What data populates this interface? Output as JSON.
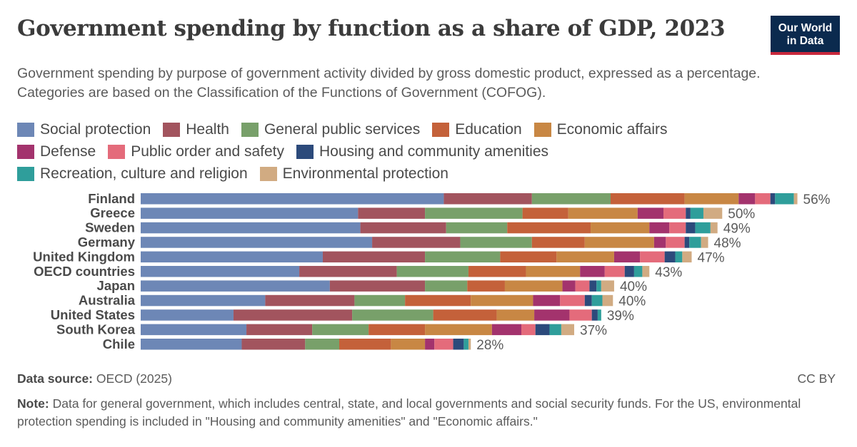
{
  "header": {
    "title": "Government spending by function as a share of GDP, 2023",
    "subtitle": "Government spending by purpose of government activity divided by gross domestic product, expressed as a percentage. Categories are based on the Classification of the Functions of Government (COFOG).",
    "logo_line1": "Our World",
    "logo_line2": "in Data"
  },
  "footer": {
    "source_label": "Data source:",
    "source_value": "OECD (2025)",
    "license": "CC BY",
    "note_label": "Note:",
    "note_text": "Data for general government, which includes central, state, and local governments and social security funds. For the US, environmental protection spending is included in \"Housing and community amenities\" and \"Economic affairs.\""
  },
  "chart_data": {
    "type": "bar",
    "orientation": "horizontal",
    "stacked": true,
    "categories": [
      "Finland",
      "Greece",
      "Sweden",
      "Germany",
      "United Kingdom",
      "OECD countries",
      "Japan",
      "Australia",
      "United States",
      "South Korea",
      "Chile"
    ],
    "total_labels": [
      "56%",
      "50%",
      "49%",
      "48%",
      "47%",
      "43%",
      "40%",
      "40%",
      "39%",
      "37%",
      "28%"
    ],
    "series": [
      {
        "name": "Social protection",
        "color": "#6d87b6",
        "values": [
          25.8,
          18.5,
          18.7,
          19.7,
          15.5,
          13.5,
          16.1,
          10.6,
          7.9,
          9.0,
          8.6
        ]
      },
      {
        "name": "Health",
        "color": "#a2545e",
        "values": [
          7.5,
          5.7,
          7.3,
          7.5,
          8.7,
          8.3,
          8.1,
          7.6,
          10.1,
          5.6,
          5.4
        ]
      },
      {
        "name": "General public services",
        "color": "#78a06a",
        "values": [
          6.7,
          8.3,
          5.2,
          6.1,
          6.4,
          6.1,
          3.6,
          4.3,
          6.9,
          4.8,
          2.9
        ]
      },
      {
        "name": "Education",
        "color": "#c4613a",
        "values": [
          6.3,
          3.9,
          7.1,
          4.5,
          4.8,
          4.9,
          3.2,
          5.6,
          5.4,
          4.8,
          4.4
        ]
      },
      {
        "name": "Economic affairs",
        "color": "#c88744",
        "values": [
          4.6,
          5.9,
          5.0,
          5.9,
          4.9,
          4.6,
          4.9,
          5.3,
          3.2,
          5.7,
          2.9
        ]
      },
      {
        "name": "Defense",
        "color": "#a3336d",
        "values": [
          1.4,
          2.2,
          1.7,
          1.0,
          2.2,
          2.1,
          1.1,
          2.3,
          3.0,
          2.5,
          0.8
        ]
      },
      {
        "name": "Public order and safety",
        "color": "#e46b7b",
        "values": [
          1.3,
          1.9,
          1.4,
          1.6,
          2.1,
          1.7,
          1.2,
          2.1,
          1.9,
          1.2,
          1.6
        ]
      },
      {
        "name": "Housing and community amenities",
        "color": "#2c4a7b",
        "values": [
          0.4,
          0.4,
          0.8,
          0.4,
          0.9,
          0.8,
          0.6,
          0.6,
          0.5,
          1.2,
          0.9
        ]
      },
      {
        "name": "Recreation, culture and religion",
        "color": "#2f9e9b",
        "values": [
          1.6,
          1.1,
          1.3,
          1.0,
          0.6,
          0.7,
          0.4,
          0.9,
          0.3,
          1.0,
          0.4
        ]
      },
      {
        "name": "Environmental protection",
        "color": "#d1ab82",
        "values": [
          0.3,
          1.6,
          0.6,
          0.6,
          0.8,
          0.6,
          1.1,
          0.9,
          0.0,
          1.1,
          0.2
        ]
      }
    ],
    "xlim": [
      0,
      56
    ]
  }
}
